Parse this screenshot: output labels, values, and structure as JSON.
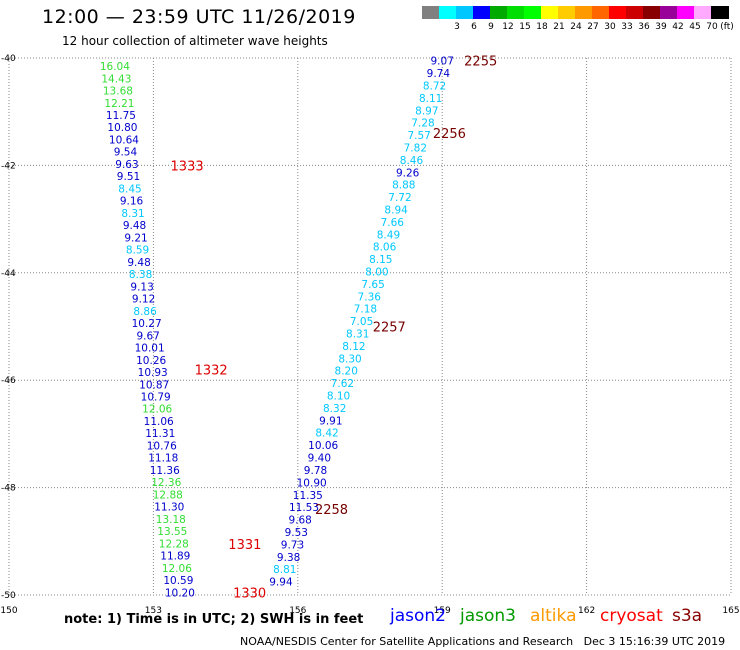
{
  "header": {
    "title": "12:00 — 23:59 UTC 11/26/2019",
    "subtitle": "12 hour collection of altimeter wave heights"
  },
  "color_scale": {
    "unit_label": "(ft)",
    "bins": [
      {
        "label": "",
        "color": "#808080"
      },
      {
        "label": "3",
        "color": "#00ffff"
      },
      {
        "label": "6",
        "color": "#00c8ff"
      },
      {
        "label": "9",
        "color": "#0000ff"
      },
      {
        "label": "12",
        "color": "#00aa00"
      },
      {
        "label": "15",
        "color": "#00dd00"
      },
      {
        "label": "18",
        "color": "#00ff00"
      },
      {
        "label": "21",
        "color": "#ffff00"
      },
      {
        "label": "24",
        "color": "#ffcc00"
      },
      {
        "label": "27",
        "color": "#ff9900"
      },
      {
        "label": "30",
        "color": "#ff6600"
      },
      {
        "label": "33",
        "color": "#ff0000"
      },
      {
        "label": "36",
        "color": "#cc0000"
      },
      {
        "label": "39",
        "color": "#880000"
      },
      {
        "label": "42",
        "color": "#990099"
      },
      {
        "label": "45",
        "color": "#ff00ff"
      },
      {
        "label": "70",
        "color": "#ffaaff"
      },
      {
        "label": "",
        "color": "#000000"
      }
    ]
  },
  "axes": {
    "x_ticks": [
      "150",
      "153",
      "156",
      "159",
      "162",
      "165"
    ],
    "y_ticks": [
      "-40",
      "-42",
      "-44",
      "-46",
      "-48",
      "-50"
    ]
  },
  "colors": {
    "low": "#00c8ff",
    "mid": "#0000cc",
    "high": "#33dd33",
    "time_label": "#dd0000",
    "time_label_dark": "#770000",
    "grid": "#888888"
  },
  "tracks": [
    {
      "id": "west",
      "lon_start": 152.2,
      "lat_start": -40.15,
      "lon_end": 153.55,
      "lat_end": -49.95,
      "values": [
        "16.04",
        "14.43",
        "13.68",
        "12.21",
        "11.75",
        "10.80",
        "10.64",
        "9.54",
        "9.63",
        "9.51",
        "8.45",
        "9.16",
        "8.31",
        "9.48",
        "9.21",
        "8.59",
        "9.48",
        "8.38",
        "9.13",
        "9.12",
        "8.86",
        "10.27",
        "9.67",
        "10.01",
        "10.26",
        "10.93",
        "10.87",
        "10.79",
        "12.06",
        "11.06",
        "11.31",
        "10.76",
        "11.18",
        "11.36",
        "12.36",
        "12.88",
        "11.30",
        "13.18",
        "13.55",
        "12.28",
        "11.89",
        "12.06",
        "10.59",
        "10.20"
      ]
    },
    {
      "id": "east",
      "lon_start": 159.0,
      "lat_start": -40.05,
      "lon_end": 155.65,
      "lat_end": -49.75,
      "values": [
        "9.07",
        "9.74",
        "8.72",
        "8.11",
        "8.97",
        "7.28",
        "7.57",
        "7.82",
        "8.46",
        "9.26",
        "8.88",
        "7.72",
        "8.94",
        "7.66",
        "8.49",
        "8.06",
        "8.15",
        "8.00",
        "7.65",
        "7.36",
        "7.18",
        "7.05",
        "8.31",
        "8.12",
        "8.30",
        "8.20",
        "7.62",
        "8.10",
        "8.32",
        "9.91",
        "8.42",
        "10.06",
        "9.40",
        "9.78",
        "10.90",
        "11.35",
        "11.53",
        "9.68",
        "9.53",
        "9.73",
        "9.38",
        "8.81",
        "9.94"
      ]
    }
  ],
  "time_labels": [
    {
      "text": "2255",
      "lon": 159.8,
      "lat": -40.05,
      "tone": "dark"
    },
    {
      "text": "2256",
      "lon": 159.15,
      "lat": -41.4,
      "tone": "dark"
    },
    {
      "text": "2257",
      "lon": 157.9,
      "lat": -45.0,
      "tone": "dark"
    },
    {
      "text": "2258",
      "lon": 156.7,
      "lat": -48.4,
      "tone": "dark"
    },
    {
      "text": "1333",
      "lon": 153.7,
      "lat": -42.0,
      "tone": "red"
    },
    {
      "text": "1332",
      "lon": 154.2,
      "lat": -45.8,
      "tone": "red"
    },
    {
      "text": "1331",
      "lon": 154.9,
      "lat": -49.05,
      "tone": "red"
    },
    {
      "text": "1330",
      "lon": 155.0,
      "lat": -49.95,
      "tone": "red"
    }
  ],
  "footer": {
    "note": "note: 1) Time is in UTC; 2) SWH is in feet",
    "satellites": [
      {
        "name": "jason2",
        "color": "#0000ff"
      },
      {
        "name": "jason3",
        "color": "#009900"
      },
      {
        "name": "altika",
        "color": "#ff9900"
      },
      {
        "name": "cryosat",
        "color": "#ff0000"
      },
      {
        "name": "s3a",
        "color": "#880000"
      }
    ],
    "credit": "NOAA/NESDIS Center for Satellite Applications and Research",
    "timestamp": "Dec  3 15:16:39 UTC 2019"
  }
}
